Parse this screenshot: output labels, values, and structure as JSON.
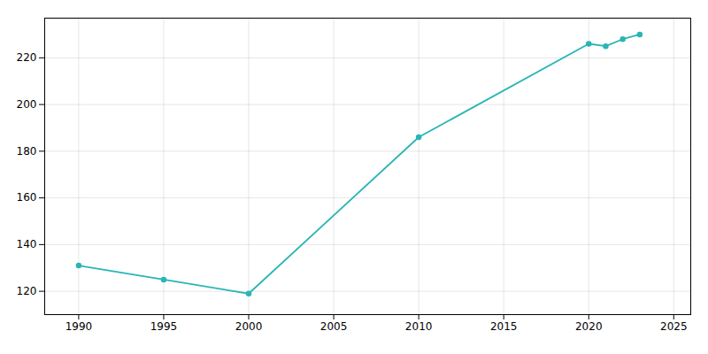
{
  "chart_data": {
    "type": "line",
    "x": [
      1990,
      1995,
      2000,
      2010,
      2020,
      2021,
      2022,
      2023
    ],
    "values": [
      131,
      125,
      119,
      186,
      226,
      225,
      228,
      230
    ],
    "color": "#2ab5b5",
    "marker": "circle",
    "xlim": [
      1988,
      2026
    ],
    "ylim": [
      110,
      237
    ],
    "xticks": [
      1990,
      1995,
      2000,
      2005,
      2010,
      2015,
      2020,
      2025
    ],
    "yticks": [
      120,
      140,
      160,
      180,
      200,
      220
    ],
    "grid": true
  }
}
